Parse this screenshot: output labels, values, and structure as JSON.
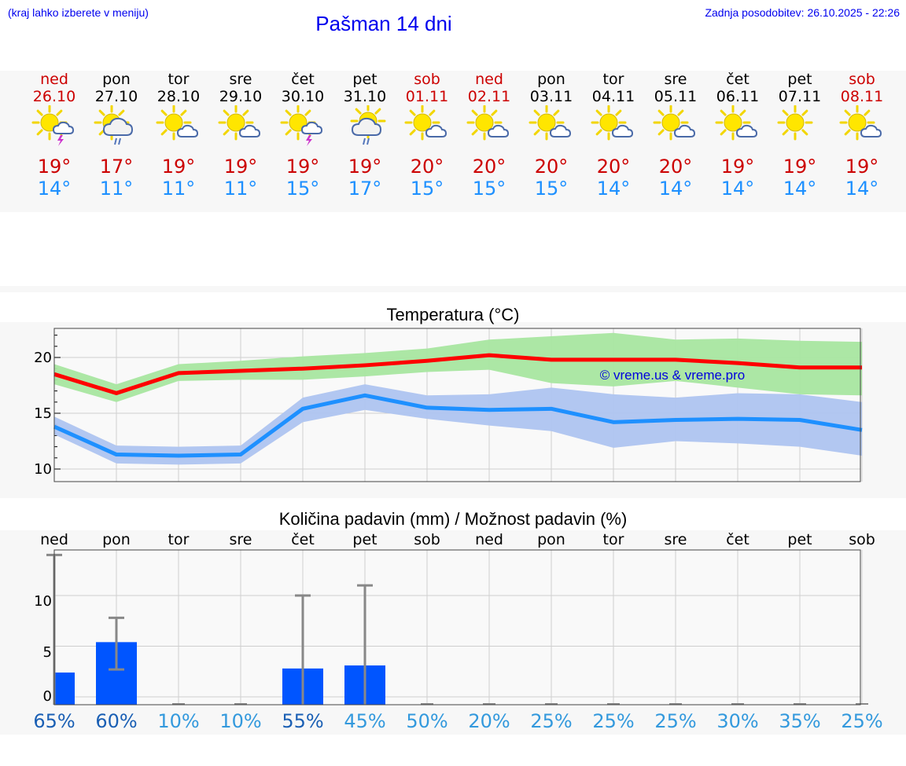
{
  "header": {
    "menu_hint": "(kraj lahko izberete v meniju)",
    "title": "Pašman 14 dni",
    "updated": "Zadnja posodobitev: 26.10.2025 - 22:26"
  },
  "days": [
    {
      "name": "ned",
      "date": "26.10",
      "weekend": true,
      "icon": "sun-cloud-thunder-icon",
      "max": "19°",
      "min": "14°"
    },
    {
      "name": "pon",
      "date": "27.10",
      "weekend": false,
      "icon": "sun-cloud-rain-icon",
      "max": "17°",
      "min": "11°"
    },
    {
      "name": "tor",
      "date": "28.10",
      "weekend": false,
      "icon": "sun-small-cloud-icon",
      "max": "19°",
      "min": "11°"
    },
    {
      "name": "sre",
      "date": "29.10",
      "weekend": false,
      "icon": "sun-small-cloud-icon",
      "max": "19°",
      "min": "11°"
    },
    {
      "name": "čet",
      "date": "30.10",
      "weekend": false,
      "icon": "sun-cloud-thunder-icon",
      "max": "19°",
      "min": "15°"
    },
    {
      "name": "pet",
      "date": "31.10",
      "weekend": false,
      "icon": "cloud-sun-rain-icon",
      "max": "19°",
      "min": "17°"
    },
    {
      "name": "sob",
      "date": "01.11",
      "weekend": true,
      "icon": "sun-small-cloud-icon",
      "max": "20°",
      "min": "15°"
    },
    {
      "name": "ned",
      "date": "02.11",
      "weekend": true,
      "icon": "sun-small-cloud-icon",
      "max": "20°",
      "min": "15°"
    },
    {
      "name": "pon",
      "date": "03.11",
      "weekend": false,
      "icon": "sun-small-cloud-icon",
      "max": "20°",
      "min": "15°"
    },
    {
      "name": "tor",
      "date": "04.11",
      "weekend": false,
      "icon": "sun-small-cloud-icon",
      "max": "20°",
      "min": "14°"
    },
    {
      "name": "sre",
      "date": "05.11",
      "weekend": false,
      "icon": "sun-small-cloud-icon",
      "max": "20°",
      "min": "14°"
    },
    {
      "name": "čet",
      "date": "06.11",
      "weekend": false,
      "icon": "sun-small-cloud-icon",
      "max": "19°",
      "min": "14°"
    },
    {
      "name": "pet",
      "date": "07.11",
      "weekend": false,
      "icon": "sun-icon",
      "max": "19°",
      "min": "14°"
    },
    {
      "name": "sob",
      "date": "08.11",
      "weekend": true,
      "icon": "sun-small-cloud-icon",
      "max": "19°",
      "min": "14°"
    }
  ],
  "chart_data": [
    {
      "type": "line",
      "title": "Temperatura (°C)",
      "watermark": "© vreme.us & vreme.pro",
      "x": [
        0,
        1,
        2,
        3,
        4,
        5,
        6,
        7,
        8,
        9,
        10,
        11,
        12,
        13
      ],
      "ylim": [
        9,
        23
      ],
      "yticks": [
        10,
        15,
        20
      ],
      "grid": true,
      "series": [
        {
          "name": "max",
          "color": "#ff0000",
          "values": [
            18.5,
            16.8,
            18.6,
            18.8,
            19.0,
            19.3,
            19.7,
            20.2,
            19.8,
            19.8,
            19.8,
            19.5,
            19.1,
            19.1
          ]
        },
        {
          "name": "min",
          "color": "#1e90ff",
          "values": [
            13.8,
            11.3,
            11.2,
            11.3,
            15.4,
            16.6,
            15.5,
            15.3,
            15.4,
            14.2,
            14.4,
            14.5,
            14.4,
            13.5
          ]
        },
        {
          "name": "max-range",
          "color": "#a8e6a0",
          "low": [
            17.6,
            16.0,
            17.9,
            18.0,
            18.0,
            18.3,
            18.7,
            18.9,
            17.7,
            17.4,
            17.9,
            17.3,
            16.7,
            16.6
          ],
          "high": [
            19.4,
            17.6,
            19.4,
            19.7,
            20.1,
            20.4,
            20.8,
            21.6,
            21.9,
            22.2,
            21.6,
            21.7,
            21.5,
            21.4
          ]
        },
        {
          "name": "min-range",
          "color": "#aec4f0",
          "low": [
            13.1,
            10.5,
            10.4,
            10.5,
            14.2,
            15.3,
            14.5,
            13.9,
            13.4,
            11.9,
            12.5,
            12.3,
            12.0,
            11.2
          ],
          "high": [
            14.7,
            12.1,
            12.0,
            12.1,
            16.4,
            17.6,
            16.6,
            16.7,
            17.3,
            16.7,
            16.4,
            16.8,
            16.7,
            16.0
          ]
        }
      ]
    },
    {
      "type": "bar",
      "title": "Količina padavin (mm) / Možnost padavin (%)",
      "categories": [
        "ned",
        "pon",
        "tor",
        "sre",
        "čet",
        "pet",
        "sob",
        "ned",
        "pon",
        "tor",
        "sre",
        "čet",
        "pet",
        "sob"
      ],
      "values": [
        2.4,
        5.4,
        0,
        0,
        2.8,
        3.1,
        0,
        0,
        0,
        0,
        0,
        0,
        0,
        0
      ],
      "error_low": [
        0,
        2.7,
        0,
        0,
        0,
        0,
        0,
        0,
        0,
        0,
        0,
        0,
        0,
        0
      ],
      "error_high": [
        14,
        7.8,
        0,
        0,
        10,
        11,
        0,
        0,
        0,
        0,
        0,
        0,
        0,
        0
      ],
      "probability": [
        "65%",
        "60%",
        "10%",
        "10%",
        "55%",
        "45%",
        "50%",
        "20%",
        "25%",
        "25%",
        "25%",
        "30%",
        "35%",
        "25%"
      ],
      "ylim": [
        -1,
        15
      ],
      "yticks": [
        0,
        5,
        10
      ],
      "bar_color": "#0055ff",
      "grid": true
    }
  ],
  "y_labels_temp": [
    "20",
    "15",
    "10"
  ],
  "y_labels_precip": [
    "10",
    "5",
    "0"
  ]
}
